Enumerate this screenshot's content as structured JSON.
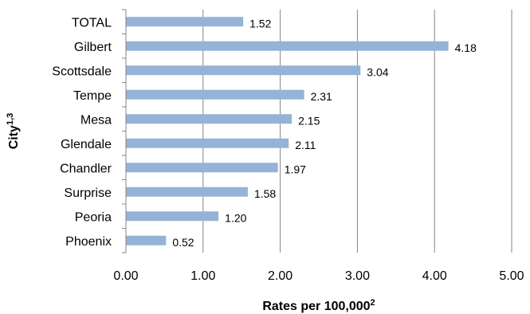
{
  "chart_data": {
    "type": "bar",
    "orientation": "horizontal",
    "categories": [
      "TOTAL",
      "Gilbert",
      "Scottsdale",
      "Tempe",
      "Mesa",
      "Glendale",
      "Chandler",
      "Surprise",
      "Peoria",
      "Phoenix"
    ],
    "values": [
      1.52,
      4.18,
      3.04,
      2.31,
      2.15,
      2.11,
      1.97,
      1.58,
      1.2,
      0.52
    ],
    "data_labels": [
      "1.52",
      "4.18",
      "3.04",
      "2.31",
      "2.15",
      "2.11",
      "1.97",
      "1.58",
      "1.20",
      "0.52"
    ],
    "xlabel": "Rates per 100,000",
    "xlabel_superscript": "2",
    "ylabel": "City",
    "ylabel_superscript": "1,3",
    "xlim": [
      0,
      5
    ],
    "xticks": [
      "0.00",
      "1.00",
      "2.00",
      "3.00",
      "4.00",
      "5.00"
    ],
    "grid": "vertical",
    "bar_color": "#95b3d7"
  }
}
